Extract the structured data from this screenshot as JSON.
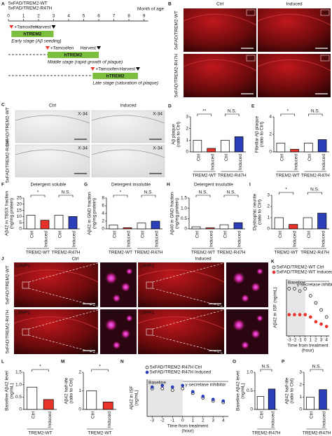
{
  "figure": {
    "panel_a": {
      "letter": "A",
      "legend": [
        "5xFAD/TREM2-WT",
        "5xFAD/TREM2-R47H"
      ],
      "axis_title": "Month of age",
      "months": [
        0,
        1,
        2,
        3,
        4,
        5,
        6,
        7,
        8,
        9
      ],
      "rows": [
        {
          "tamoxifen": "+Tamoxifen",
          "harvest": "Harvest",
          "bar": "hTREM2",
          "stage": "Early stage (Aβ seeding)"
        },
        {
          "tamoxifen": "+Tamoxifen",
          "harvest": "Harvest",
          "bar": "hTREM2",
          "stage": "Middle stage (rapid growth of plaque)"
        },
        {
          "tamoxifen": "+Tamoxifen",
          "harvest": "Harvest",
          "bar": "hTREM2",
          "stage": "Late stage (saturation of plaque)"
        }
      ]
    },
    "panel_b": {
      "letter": "B",
      "columns": [
        "Ctrl",
        "Induced"
      ],
      "rows": [
        "5xFAD/TREM2-WT",
        "5xFAD/TREM2-R47H"
      ],
      "stain": "Aβ"
    },
    "panel_c": {
      "letter": "C",
      "columns": [
        "Ctrl",
        "Induced"
      ],
      "rows": [
        "5xFAD/TREM2-WT",
        "5xFAD/TREM2-R47H"
      ],
      "stain": "X-34"
    },
    "panel_j": {
      "letter": "J",
      "columns": [
        "Ctrl",
        "Induced"
      ],
      "rows": [
        "5xFAD/TREM2-WT",
        "5xFAD/TREM2-R47H"
      ],
      "stain": "LAMP1",
      "merge_stain": "X-34/LAMP1"
    }
  },
  "chart_data": [
    {
      "type": "bar",
      "letter": "D",
      "ylabel": [
        "Aβ plaque",
        "(ratio to Ctrl)"
      ],
      "categories": [
        "Ctrl",
        "Induced",
        "Ctrl",
        "Induced"
      ],
      "group_labels": [
        "TREM2-WT",
        "TREM2-R47H"
      ],
      "significance": [
        "**",
        "N.S."
      ],
      "values": [
        1,
        0.3,
        1,
        1.3
      ],
      "colors": [
        "#ffffff",
        "#e8332a",
        "#ffffff",
        "#2a3fb8"
      ],
      "ylim": [
        0,
        3
      ],
      "yticks": [
        0,
        1,
        2,
        3
      ]
    },
    {
      "type": "bar",
      "letter": "E",
      "ylabel": [
        "Fibrillar Aβ plaque",
        "(ratio to Ctrl)"
      ],
      "categories": [
        "Ctrl",
        "Induced",
        "Ctrl",
        "Induced"
      ],
      "group_labels": [
        "TREM2-WT",
        "TREM2-R47H"
      ],
      "significance": [
        "*",
        "N.S."
      ],
      "values": [
        1,
        0.3,
        1,
        1.4
      ],
      "colors": [
        "#ffffff",
        "#e8332a",
        "#ffffff",
        "#2a3fb8"
      ],
      "ylim": [
        0,
        4
      ],
      "yticks": [
        0,
        2,
        4
      ]
    },
    {
      "type": "bar",
      "letter": "F",
      "title": "Detergent soluble",
      "ylabel": [
        "Aβ42 in TBSX fraction",
        "(ng/mg protein)"
      ],
      "categories": [
        "Ctrl",
        "Induced",
        "Ctrl",
        "Induced"
      ],
      "group_labels": [
        "TREM2-WT",
        "TREM2-R47H"
      ],
      "significance": [
        "*",
        "N.S."
      ],
      "values": [
        11,
        7,
        11,
        10
      ],
      "colors": [
        "#ffffff",
        "#e8332a",
        "#ffffff",
        "#2a3fb8"
      ],
      "ylim": [
        0,
        25
      ],
      "yticks": [
        0,
        5,
        10,
        15,
        20,
        25
      ]
    },
    {
      "type": "bar",
      "letter": "G",
      "title": "Detergent insoluble",
      "ylabel": [
        "Aβ42 in GND fraction",
        "(ng/mg protein)"
      ],
      "categories": [
        "Ctrl",
        "Induced",
        "Ctrl",
        "Induced"
      ],
      "group_labels": [
        "TREM2-WT",
        "TREM2-R47H"
      ],
      "significance": [
        "*",
        "N.S."
      ],
      "values": [
        1,
        0.3,
        1.5,
        2
      ],
      "colors": [
        "#ffffff",
        "#e8332a",
        "#ffffff",
        "#2a3fb8"
      ],
      "ylim": [
        0,
        8
      ],
      "yticks": [
        0,
        2,
        4,
        6,
        8
      ]
    },
    {
      "type": "bar",
      "letter": "H",
      "title": "Detergent insoluble",
      "ylabel": [
        "Aβ40 in GND fraction",
        "(ng/mg protein)"
      ],
      "categories": [
        "Ctrl",
        "Induced",
        "Ctrl",
        "Induced"
      ],
      "group_labels": [
        "TREM2-WT",
        "TREM2-R47H"
      ],
      "significance": [
        "N.S.",
        "N.S."
      ],
      "values": [
        0.1,
        0.05,
        0.2,
        0.3
      ],
      "colors": [
        "#ffffff",
        "#e8332a",
        "#ffffff",
        "#2a3fb8"
      ],
      "ylim": [
        0,
        1.5
      ],
      "yticks": [
        0,
        0.5,
        {
          "value": 1,
          "label": "1.0"
        },
        1.5
      ]
    },
    {
      "type": "bar",
      "letter": "I",
      "ylabel": [
        "Dystrophic neurite",
        "(ratio to Ctrl)"
      ],
      "categories": [
        "Ctrl",
        "Induced",
        "Ctrl",
        "Induced"
      ],
      "group_labels": [
        "TREM2-WT",
        "TREM2-R47H"
      ],
      "significance": [
        "*",
        "N.S."
      ],
      "values": [
        1,
        0.4,
        1,
        1.4
      ],
      "colors": [
        "#ffffff",
        "#e8332a",
        "#ffffff",
        "#2a3fb8"
      ],
      "ylim": [
        0,
        3
      ],
      "yticks": [
        0,
        1,
        2,
        3
      ]
    },
    {
      "type": "line",
      "letter": "K",
      "ylabel": [
        "Aβ42 in ISF (ng/mL)"
      ],
      "xlabel": [
        "Time from treatment",
        "(hour)"
      ],
      "annotations": [
        "Baseline",
        "γ-secretase inhibitor"
      ],
      "x": [
        -3,
        -2,
        -1,
        0,
        1,
        2,
        3,
        4
      ],
      "xlim": [
        -3.5,
        4.5
      ],
      "xticks": [
        -3,
        -2,
        -1,
        0,
        1,
        2,
        3,
        4
      ],
      "ylim": [
        0,
        1.2
      ],
      "series": [
        {
          "name": "5xFAD/TREM2-WT Ctrl",
          "color": "#000000",
          "filled": false,
          "values": [
            1.0,
            1.0,
            0.95,
            1.0,
            0.85,
            0.7,
            0.55,
            0.4
          ]
        },
        {
          "name": "5xFAD/TREM2-WT Induced",
          "color": "#e8332a",
          "filled": true,
          "values": [
            0.45,
            0.45,
            0.45,
            0.45,
            0.4,
            0.3,
            0.25,
            0.2
          ]
        }
      ]
    },
    {
      "type": "bar",
      "letter": "L",
      "ylabel": [
        "Baseline Aβ42 level",
        "(ng/mL)"
      ],
      "categories": [
        "Ctrl",
        "Induced"
      ],
      "group_labels": [
        "TREM2-WT"
      ],
      "significance": [
        "*"
      ],
      "values": [
        0.9,
        0.4
      ],
      "colors": [
        "#ffffff",
        "#e8332a"
      ],
      "ylim": [
        0,
        1.5
      ],
      "yticks": [
        0,
        0.5,
        {
          "value": 1,
          "label": "1.0"
        },
        1.5
      ]
    },
    {
      "type": "bar",
      "letter": "M",
      "ylabel": [
        "Aβ42 half-life",
        "(ratio to Ctrl)"
      ],
      "categories": [
        "Ctrl",
        "Induced"
      ],
      "group_labels": [
        "TREM2-WT"
      ],
      "significance": [
        "*"
      ],
      "values": [
        1,
        0.4
      ],
      "colors": [
        "#ffffff",
        "#e8332a"
      ],
      "ylim": [
        0,
        2
      ],
      "yticks": [
        0,
        1,
        2
      ]
    },
    {
      "type": "line",
      "letter": "N",
      "ylabel": [
        "Aβ42 in ISF",
        "(ng/mL)"
      ],
      "xlabel": [
        "Time from treatment",
        "(hour)"
      ],
      "annotations": [
        "Baseline",
        "γ-secretase inhibitor"
      ],
      "x": [
        -3,
        -2,
        -1,
        0,
        1,
        2,
        3,
        4
      ],
      "xlim": [
        -3.5,
        4.5
      ],
      "xticks": [
        -3,
        -2,
        -1,
        0,
        1,
        2,
        3,
        4
      ],
      "ylim": [
        0,
        1.2
      ],
      "series": [
        {
          "name": "5xFAD/TREM2-R47H Ctrl",
          "color": "#000000",
          "filled": false,
          "values": [
            0.9,
            0.9,
            0.85,
            0.9,
            0.75,
            0.6,
            0.5,
            0.45
          ]
        },
        {
          "name": "5xFAD/TREM2-R47H Induced",
          "color": "#2a3fb8",
          "filled": true,
          "values": [
            0.95,
            1.0,
            0.95,
            1.0,
            0.8,
            0.65,
            0.55,
            0.5
          ]
        }
      ]
    },
    {
      "type": "bar",
      "letter": "O",
      "ylabel": [
        "Baseline Aβ42 level",
        "(ng/mL)"
      ],
      "categories": [
        "Ctrl",
        "Induced"
      ],
      "group_labels": [
        "TREM2-R47H"
      ],
      "significance": [
        "N.S."
      ],
      "values": [
        0.35,
        0.55
      ],
      "colors": [
        "#ffffff",
        "#2a3fb8"
      ],
      "ylim": [
        0,
        1
      ],
      "yticks": [
        0,
        0.5,
        {
          "value": 1,
          "label": "1.0"
        }
      ]
    },
    {
      "type": "bar",
      "letter": "P",
      "ylabel": [
        "Aβ42 half-life",
        "(ratio to Ctrl)"
      ],
      "categories": [
        "Ctrl",
        "Induced"
      ],
      "group_labels": [
        "TREM2-R47H"
      ],
      "significance": [
        "N.S."
      ],
      "values": [
        1,
        1.6
      ],
      "colors": [
        "#ffffff",
        "#2a3fb8"
      ],
      "ylim": [
        0,
        3
      ],
      "yticks": [
        0,
        1,
        2,
        3
      ]
    }
  ]
}
